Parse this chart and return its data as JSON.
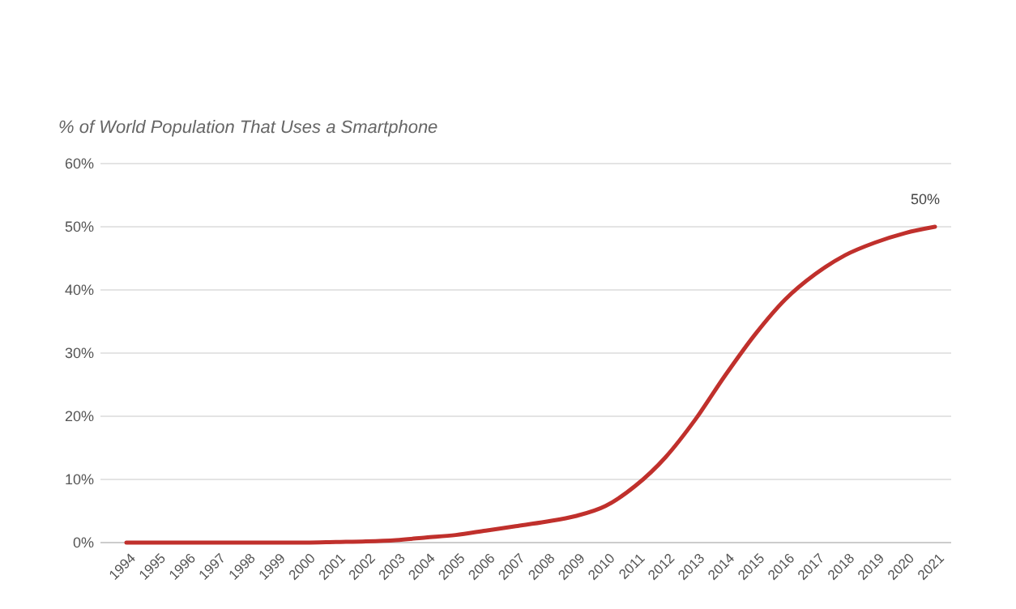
{
  "chart_data": {
    "type": "line",
    "title": "% of World Population That Uses a Smartphone",
    "categories": [
      "1994",
      "1995",
      "1996",
      "1997",
      "1998",
      "1999",
      "2000",
      "2001",
      "2002",
      "2003",
      "2004",
      "2005",
      "2006",
      "2007",
      "2008",
      "2009",
      "2010",
      "2011",
      "2012",
      "2013",
      "2014",
      "2015",
      "2016",
      "2017",
      "2018",
      "2019",
      "2020",
      "2021"
    ],
    "series": [
      {
        "color": "#c0302c",
        "values": [
          0,
          0,
          0,
          0,
          0,
          0,
          0,
          0.1,
          0.2,
          0.4,
          0.8,
          1.2,
          1.9,
          2.6,
          3.3,
          4.2,
          5.8,
          9,
          13.5,
          19.5,
          26.5,
          33,
          38.5,
          42.5,
          45.5,
          47.5,
          49,
          50
        ]
      }
    ],
    "ylim": [
      0,
      60
    ],
    "yticks": [
      {
        "value": 0,
        "label": "0%"
      },
      {
        "value": 10,
        "label": "10%"
      },
      {
        "value": 20,
        "label": "20%"
      },
      {
        "value": 30,
        "label": "30%"
      },
      {
        "value": 40,
        "label": "40%"
      },
      {
        "value": 50,
        "label": "50%"
      },
      {
        "value": 60,
        "label": "60%"
      }
    ],
    "grid": "y",
    "marker": "none",
    "line_style": "solid",
    "annotations": [
      {
        "text": "50%",
        "x": "2021",
        "y": 50
      }
    ]
  }
}
